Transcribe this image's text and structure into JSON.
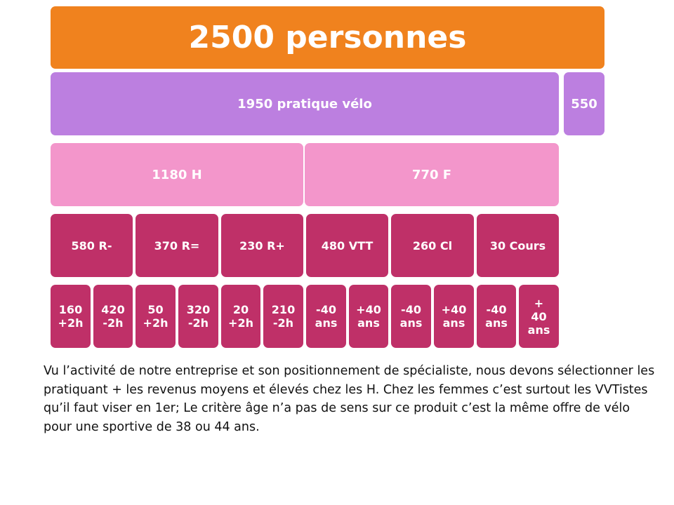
{
  "root": {
    "label": "2500 personnes"
  },
  "level1": [
    {
      "label": "1950 pratique vélo"
    },
    {
      "label": "550"
    }
  ],
  "level2": [
    {
      "label": "1180 H"
    },
    {
      "label": "770 F"
    }
  ],
  "level3": [
    {
      "label": "580 R-"
    },
    {
      "label": "370 R="
    },
    {
      "label": "230 R+"
    },
    {
      "label": "480 VTT"
    },
    {
      "label": "260 Cl"
    },
    {
      "label": "30 Cours"
    }
  ],
  "level4": [
    {
      "label": "160\n+2h"
    },
    {
      "label": "420\n-2h"
    },
    {
      "label": "50\n+2h"
    },
    {
      "label": "320\n-2h"
    },
    {
      "label": "20\n+2h"
    },
    {
      "label": "210\n-2h"
    },
    {
      "label": "-40\nans"
    },
    {
      "label": "+40\nans"
    },
    {
      "label": "-40\nans"
    },
    {
      "label": "+40\nans"
    },
    {
      "label": "-40\nans"
    },
    {
      "label": "+\n40\nans"
    }
  ],
  "description": "Vu l’activité de notre entreprise et son positionnement de spécialiste, nous devons sélectionner les pratiquant + les revenus moyens et élevés chez les H. Chez les femmes c’est surtout les VVTistes qu’il faut viser en 1er; Le critère âge n’a pas de sens sur ce produit c’est la même offre de vélo pour une sportive de 38 ou 44 ans.",
  "colors": {
    "root": "#f0821e",
    "level1": "#bc7fe0",
    "level2": "#f396cb",
    "level3": "#bf3068",
    "level4": "#bf3068"
  }
}
